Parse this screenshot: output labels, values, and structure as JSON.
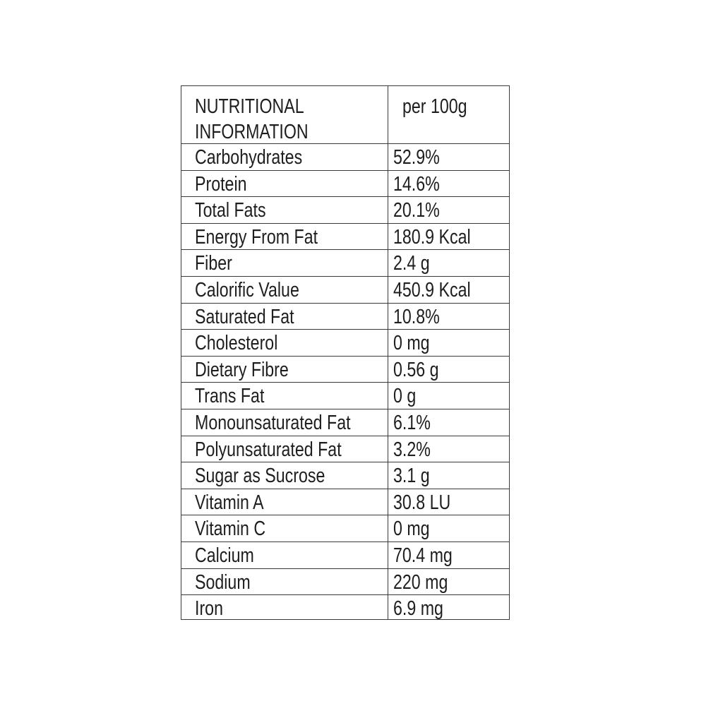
{
  "header": {
    "label_line1": "NUTRITIONAL",
    "label_line2": "INFORMATION",
    "value": "per 100g"
  },
  "rows": [
    {
      "label": "Carbohydrates",
      "value": "52.9%"
    },
    {
      "label": "Protein",
      "value": "14.6%"
    },
    {
      "label": "Total Fats",
      "value": "20.1%"
    },
    {
      "label": "Energy From Fat",
      "value": "180.9 Kcal"
    },
    {
      "label": "Fiber",
      "value": "2.4 g"
    },
    {
      "label": "Calorific Value",
      "value": "450.9 Kcal"
    },
    {
      "label": "Saturated Fat",
      "value": "10.8%"
    },
    {
      "label": "Cholesterol",
      "value": "0 mg"
    },
    {
      "label": "Dietary Fibre",
      "value": "0.56 g"
    },
    {
      "label": "Trans Fat",
      "value": "0 g"
    },
    {
      "label": "Monounsaturated Fat",
      "value": "6.1%"
    },
    {
      "label": "Polyunsaturated Fat",
      "value": "3.2%"
    },
    {
      "label": "Sugar as Sucrose",
      "value": "3.1 g"
    },
    {
      "label": "Vitamin A",
      "value": "30.8 LU"
    },
    {
      "label": "Vitamin C",
      "value": "0 mg"
    },
    {
      "label": "Calcium",
      "value": "70.4 mg"
    },
    {
      "label": "Sodium",
      "value": "220 mg"
    },
    {
      "label": "Iron",
      "value": "6.9 mg"
    }
  ]
}
